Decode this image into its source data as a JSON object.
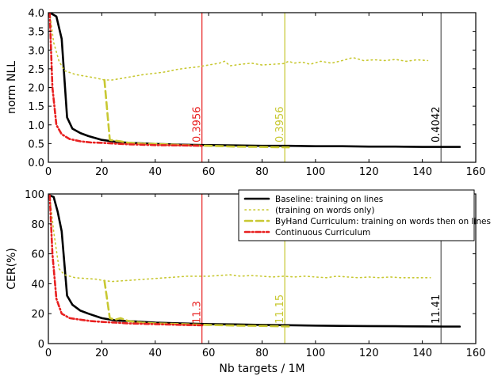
{
  "chart_data": [
    {
      "type": "line",
      "title": "",
      "xlabel": "",
      "ylabel": "norm NLL",
      "xlim": [
        0,
        160
      ],
      "ylim": [
        0,
        4
      ],
      "xticks": [
        "0",
        "20",
        "40",
        "60",
        "80",
        "100",
        "120",
        "140",
        "160"
      ],
      "yticks": [
        "0.0",
        "0.5",
        "1.0",
        "1.5",
        "2.0",
        "2.5",
        "3.0",
        "3.5",
        "4.0"
      ],
      "series": [
        {
          "name": "Baseline: training on lines",
          "color": "#000000",
          "style": "solid",
          "x": [
            0.5,
            3,
            5,
            7,
            9,
            12,
            15,
            20,
            25,
            30,
            40,
            50,
            60,
            70,
            80,
            90,
            100,
            110,
            120,
            130,
            140,
            148,
            154
          ],
          "y": [
            4.0,
            3.9,
            3.3,
            1.2,
            0.9,
            0.78,
            0.7,
            0.6,
            0.55,
            0.52,
            0.49,
            0.47,
            0.46,
            0.45,
            0.44,
            0.44,
            0.43,
            0.43,
            0.42,
            0.42,
            0.41,
            0.41,
            0.41
          ]
        },
        {
          "name": "(training on words only)",
          "color": "#c8c832",
          "style": "dotted",
          "x": [
            0.5,
            2,
            4,
            6,
            8,
            10,
            14,
            18,
            21,
            24,
            28,
            32,
            36,
            40,
            44,
            48,
            52,
            56,
            60,
            64,
            66,
            68,
            72,
            76,
            80,
            84,
            88,
            90,
            92,
            95,
            98,
            102,
            106,
            110,
            114,
            118,
            122,
            126,
            130,
            134,
            138,
            142
          ],
          "y": [
            4.0,
            3.2,
            2.7,
            2.45,
            2.4,
            2.35,
            2.3,
            2.25,
            2.2,
            2.2,
            2.25,
            2.3,
            2.35,
            2.38,
            2.42,
            2.48,
            2.52,
            2.55,
            2.6,
            2.65,
            2.7,
            2.58,
            2.62,
            2.65,
            2.6,
            2.62,
            2.64,
            2.7,
            2.65,
            2.68,
            2.62,
            2.7,
            2.65,
            2.72,
            2.8,
            2.72,
            2.74,
            2.72,
            2.75,
            2.7,
            2.74,
            2.72
          ]
        },
        {
          "name": "ByHand Curriculum: training on words then on lines",
          "color": "#c8c832",
          "style": "dashed",
          "x": [
            21,
            23,
            25,
            27,
            30,
            35,
            40,
            50,
            60,
            70,
            80,
            90
          ],
          "y": [
            2.2,
            0.6,
            0.58,
            0.56,
            0.52,
            0.5,
            0.49,
            0.46,
            0.44,
            0.42,
            0.41,
            0.4
          ]
        },
        {
          "name": "Continuous Curriculum",
          "color": "#e82020",
          "style": "dashdot",
          "x": [
            0.5,
            1.5,
            3,
            5,
            8,
            12,
            16,
            20,
            25,
            30,
            40,
            50,
            58
          ],
          "y": [
            4.0,
            2.0,
            1.0,
            0.75,
            0.62,
            0.56,
            0.53,
            0.52,
            0.5,
            0.48,
            0.46,
            0.45,
            0.44
          ]
        }
      ],
      "vlines": [
        {
          "x": 57.5,
          "label": "0.3956",
          "color": "#e82020",
          "label_color": "#e82020"
        },
        {
          "x": 88.5,
          "label": "0.3956",
          "color": "#c8c832",
          "label_color": "#c8c832"
        },
        {
          "x": 147,
          "label": "0.4042",
          "color": "#555555",
          "label_color": "#000000"
        }
      ]
    },
    {
      "type": "line",
      "title": "",
      "xlabel": "Nb targets / 1M",
      "ylabel": "CER(%)",
      "xlim": [
        0,
        160
      ],
      "ylim": [
        0,
        100
      ],
      "xticks": [
        "0",
        "20",
        "40",
        "60",
        "80",
        "100",
        "120",
        "140",
        "160"
      ],
      "yticks": [
        "0",
        "20",
        "40",
        "60",
        "80",
        "100"
      ],
      "legend_position": "top-right",
      "series": [
        {
          "name": "Baseline: training on lines",
          "color": "#000000",
          "style": "solid",
          "x": [
            0.5,
            2,
            3.5,
            5,
            7,
            9,
            12,
            15,
            20,
            25,
            30,
            40,
            50,
            60,
            70,
            80,
            90,
            100,
            110,
            120,
            130,
            140,
            148,
            154
          ],
          "y": [
            99,
            98,
            88,
            75,
            32,
            26,
            22,
            20,
            17,
            15.5,
            15,
            14,
            13.5,
            13,
            12.8,
            12.5,
            12.3,
            12,
            11.8,
            11.7,
            11.6,
            11.5,
            11.4,
            11.4
          ]
        },
        {
          "name": "(training on words only)",
          "color": "#c8c832",
          "style": "dotted",
          "x": [
            0.5,
            2,
            4,
            6,
            8,
            10,
            14,
            18,
            21,
            24,
            28,
            32,
            36,
            40,
            44,
            48,
            52,
            56,
            60,
            64,
            68,
            72,
            76,
            80,
            84,
            88,
            92,
            96,
            100,
            104,
            108,
            112,
            116,
            120,
            124,
            128,
            132,
            136,
            140,
            143
          ],
          "y": [
            99,
            75,
            50,
            46,
            45,
            44,
            43.5,
            43,
            42,
            41.5,
            42,
            42.5,
            43,
            43.5,
            44,
            44.5,
            45,
            45,
            45,
            45.5,
            46,
            45,
            45.5,
            45,
            44.5,
            45,
            44.5,
            45,
            44.5,
            44,
            45,
            44.5,
            44,
            44.5,
            44,
            44.5,
            44,
            44,
            44,
            44
          ]
        },
        {
          "name": "ByHand Curriculum: training on words then on lines",
          "color": "#c8c832",
          "style": "dashed",
          "x": [
            21,
            23,
            25,
            27,
            30,
            35,
            40,
            50,
            60,
            70,
            80,
            90
          ],
          "y": [
            42,
            17,
            16,
            17,
            15,
            14,
            13.5,
            13,
            12.5,
            12,
            11.8,
            11.5
          ]
        },
        {
          "name": "Continuous Curriculum",
          "color": "#e82020",
          "style": "dashdot",
          "x": [
            0.5,
            1.5,
            3,
            5,
            8,
            12,
            16,
            20,
            25,
            30,
            40,
            50,
            58
          ],
          "y": [
            99,
            60,
            30,
            20,
            17,
            16,
            15,
            14.5,
            14,
            13.5,
            13,
            12.5,
            12.2
          ]
        }
      ],
      "vlines": [
        {
          "x": 57.5,
          "label": "11.3",
          "color": "#e82020",
          "label_color": "#e82020"
        },
        {
          "x": 88.5,
          "label": "11.15",
          "color": "#c8c832",
          "label_color": "#c8c832"
        },
        {
          "x": 147,
          "label": "11.41",
          "color": "#555555",
          "label_color": "#000000"
        }
      ]
    }
  ]
}
